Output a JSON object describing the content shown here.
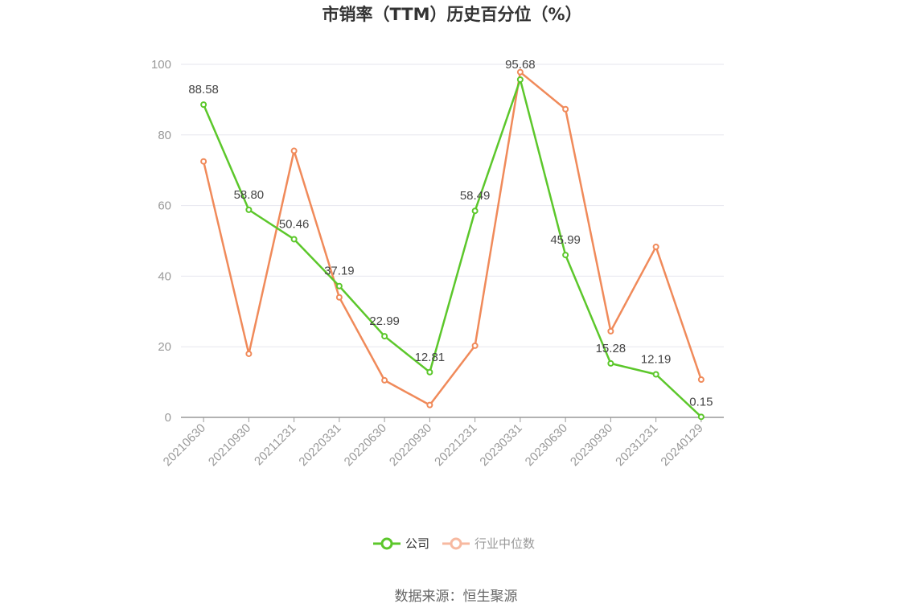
{
  "chart_data": {
    "type": "line",
    "title": "市销率（TTM）历史百分位（%）",
    "categories": [
      "20210630",
      "20210930",
      "20211231",
      "20220331",
      "20220630",
      "20220930",
      "20221231",
      "20230331",
      "20230630",
      "20230930",
      "20231231",
      "20240129"
    ],
    "series": [
      {
        "name": "公司",
        "color": "#5cc72b",
        "values": [
          88.58,
          58.8,
          50.46,
          37.19,
          22.99,
          12.81,
          58.49,
          95.68,
          45.99,
          15.28,
          12.19,
          0.15
        ],
        "labels": [
          "88.58",
          "58.80",
          "50.46",
          "37.19",
          "22.99",
          "12.81",
          "58.49",
          "95.68",
          "45.99",
          "15.28",
          "12.19",
          "0.15"
        ]
      },
      {
        "name": "行业中位数",
        "color": "#f08a5a",
        "values": [
          72.5,
          18.0,
          75.5,
          34.0,
          10.5,
          3.5,
          20.3,
          97.8,
          87.3,
          24.4,
          48.3,
          10.7
        ]
      }
    ],
    "yticks": [
      0,
      20,
      40,
      60,
      80,
      100
    ],
    "ylim": [
      0,
      100
    ],
    "grid": true,
    "legend_position": "bottom-center",
    "source": "数据来源：恒生聚源"
  }
}
